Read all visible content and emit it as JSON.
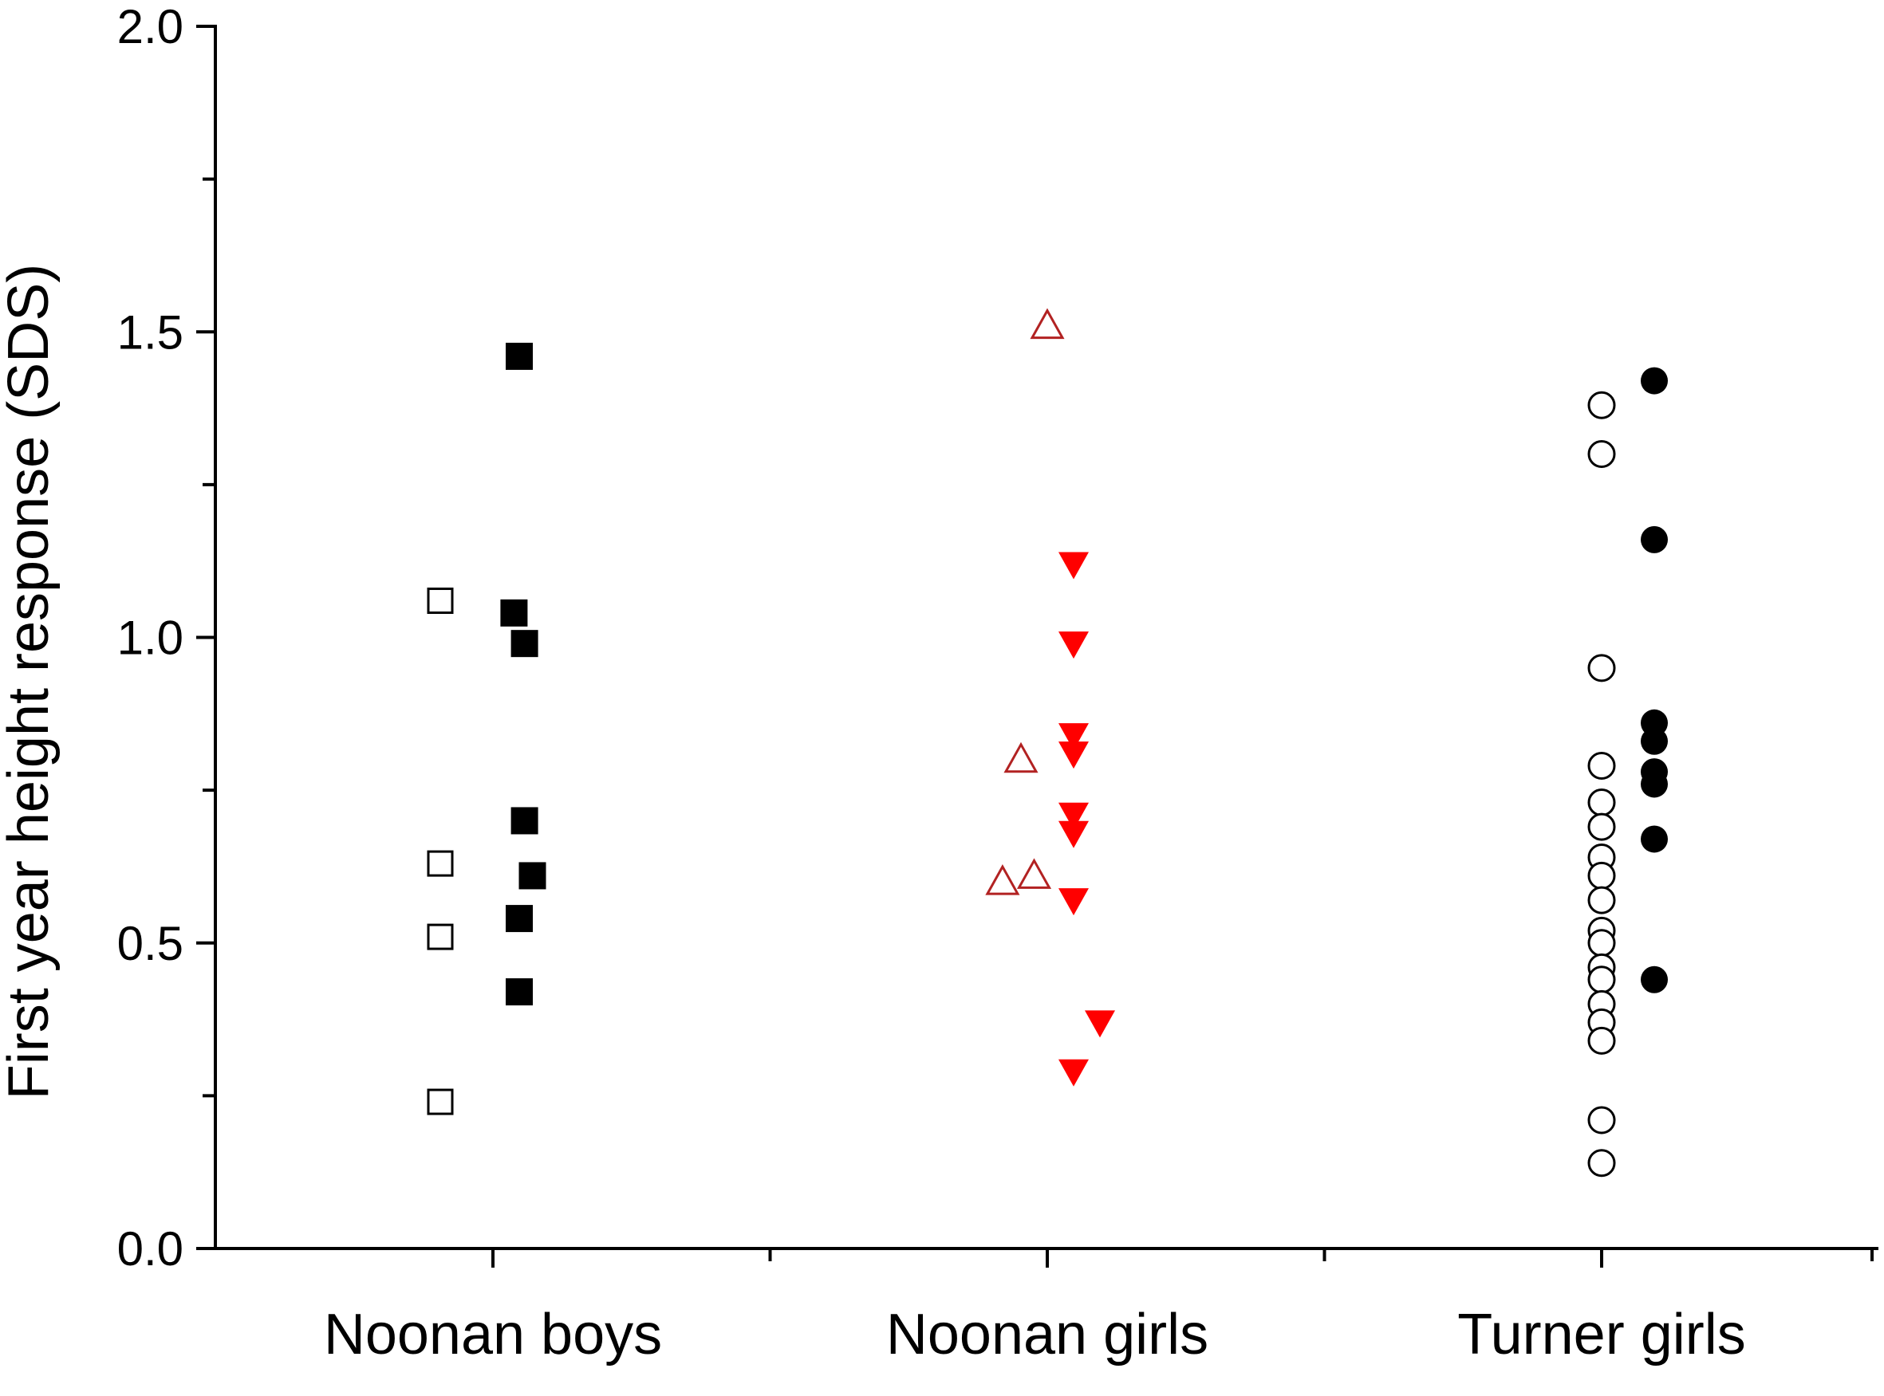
{
  "chart_data": {
    "type": "scatter",
    "title": "",
    "xlabel": "",
    "ylabel": "First year height response (SDS)",
    "ylim": [
      0.0,
      2.0
    ],
    "y_ticks": [
      "0.0",
      "0.5",
      "1.0",
      "1.5",
      "2.0"
    ],
    "categories": [
      "Noonan boys",
      "Noonan girls",
      "Turner girls"
    ],
    "grid": false,
    "legend": "none",
    "colors": {
      "axis": "#000000",
      "black_markers": "#000000",
      "red_markers": "#ff0000",
      "red_outline": "#b22222"
    },
    "series": [
      {
        "category": "Noonan boys",
        "marker": "open-square",
        "color": "#000000",
        "points": [
          {
            "x": -0.2,
            "y": 1.06
          },
          {
            "x": -0.2,
            "y": 0.63
          },
          {
            "x": -0.2,
            "y": 0.51
          },
          {
            "x": -0.2,
            "y": 0.24
          }
        ]
      },
      {
        "category": "Noonan boys",
        "marker": "filled-square",
        "color": "#000000",
        "points": [
          {
            "x": 0.1,
            "y": 1.46
          },
          {
            "x": 0.08,
            "y": 1.04
          },
          {
            "x": 0.12,
            "y": 0.99
          },
          {
            "x": 0.12,
            "y": 0.7
          },
          {
            "x": 0.15,
            "y": 0.61
          },
          {
            "x": 0.1,
            "y": 0.54
          },
          {
            "x": 0.1,
            "y": 0.42
          }
        ]
      },
      {
        "category": "Noonan girls",
        "marker": "open-triangle-up",
        "color": "#b22222",
        "points": [
          {
            "x": 0.0,
            "y": 1.51
          },
          {
            "x": -0.1,
            "y": 0.8
          },
          {
            "x": -0.17,
            "y": 0.6
          },
          {
            "x": -0.05,
            "y": 0.61
          }
        ]
      },
      {
        "category": "Noonan girls",
        "marker": "filled-triangle-down",
        "color": "#ff0000",
        "points": [
          {
            "x": 0.1,
            "y": 1.12
          },
          {
            "x": 0.1,
            "y": 0.99
          },
          {
            "x": 0.1,
            "y": 0.84
          },
          {
            "x": 0.1,
            "y": 0.81
          },
          {
            "x": 0.1,
            "y": 0.71
          },
          {
            "x": 0.1,
            "y": 0.68
          },
          {
            "x": 0.1,
            "y": 0.57
          },
          {
            "x": 0.2,
            "y": 0.37
          },
          {
            "x": 0.1,
            "y": 0.29
          }
        ]
      },
      {
        "category": "Turner girls",
        "marker": "open-circle",
        "color": "#000000",
        "points": [
          {
            "x": 0.0,
            "y": 1.38
          },
          {
            "x": 0.0,
            "y": 1.3
          },
          {
            "x": 0.0,
            "y": 0.95
          },
          {
            "x": 0.0,
            "y": 0.79
          },
          {
            "x": 0.0,
            "y": 0.73
          },
          {
            "x": 0.0,
            "y": 0.69
          },
          {
            "x": 0.0,
            "y": 0.64
          },
          {
            "x": 0.0,
            "y": 0.61
          },
          {
            "x": 0.0,
            "y": 0.57
          },
          {
            "x": 0.0,
            "y": 0.52
          },
          {
            "x": 0.0,
            "y": 0.5
          },
          {
            "x": 0.0,
            "y": 0.46
          },
          {
            "x": 0.0,
            "y": 0.44
          },
          {
            "x": 0.0,
            "y": 0.4
          },
          {
            "x": 0.0,
            "y": 0.37
          },
          {
            "x": 0.0,
            "y": 0.34
          },
          {
            "x": 0.0,
            "y": 0.21
          },
          {
            "x": 0.0,
            "y": 0.14
          }
        ]
      },
      {
        "category": "Turner girls",
        "marker": "filled-circle",
        "color": "#000000",
        "points": [
          {
            "x": 0.2,
            "y": 1.42
          },
          {
            "x": 0.2,
            "y": 1.16
          },
          {
            "x": 0.2,
            "y": 0.86
          },
          {
            "x": 0.2,
            "y": 0.83
          },
          {
            "x": 0.2,
            "y": 0.78
          },
          {
            "x": 0.2,
            "y": 0.76
          },
          {
            "x": 0.2,
            "y": 0.67
          },
          {
            "x": 0.2,
            "y": 0.44
          }
        ]
      }
    ]
  }
}
